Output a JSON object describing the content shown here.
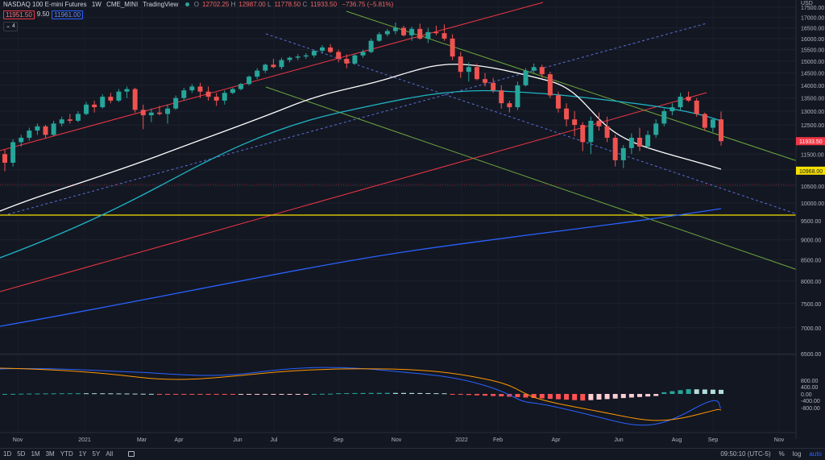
{
  "header": {
    "title": "NASDAQ 100 E-mini Futures",
    "interval": "1W",
    "symbol": "CME_MINI",
    "source": "TradingView",
    "ohlc": [
      {
        "label": "O",
        "value": "12702.25"
      },
      {
        "label": "H",
        "value": "12987.00"
      },
      {
        "label": "L",
        "value": "11778.50"
      },
      {
        "label": "C",
        "value": "11933.50"
      }
    ],
    "change": "−736.75 (−5.81%)",
    "bid": "11951.50",
    "spread": "9.50",
    "ask": "11961.00",
    "indicator_count": "4"
  },
  "price_axis": {
    "ticks": [
      "17500.00",
      "17000.00",
      "16500.00",
      "16000.00",
      "15500.00",
      "15000.00",
      "14500.00",
      "14000.00",
      "13500.00",
      "13000.00",
      "12500.00",
      "12000.00",
      "11500.00",
      "11000.00",
      "10500.00",
      "10000.00",
      "9500.00",
      "9000.00",
      "8500.00",
      "8000.00",
      "7500.00",
      "7000.00",
      "6500.00"
    ],
    "top_label": "USD",
    "last_price_label": "11933.50",
    "level_label": "10968.00",
    "colors": {
      "last": "#f23645",
      "level": "#f5e000"
    }
  },
  "macd_axis": {
    "ticks": [
      "800.00",
      "400.00",
      "0.00",
      "-400.00",
      "-800.00"
    ]
  },
  "time_axis": {
    "labels": [
      "Nov",
      "2021",
      "Mar",
      "Apr",
      "Jun",
      "Jul",
      "Sep",
      "Nov",
      "2022",
      "Feb",
      "Apr",
      "Jun",
      "Aug",
      "Sep",
      "Nov"
    ]
  },
  "bottom_bar": {
    "timeframes": [
      "1D",
      "5D",
      "1M",
      "3M",
      "YTD",
      "1Y",
      "5Y",
      "All"
    ],
    "clock": "09:50:10 (UTC-5)",
    "percent": "%",
    "log": "log",
    "auto": "auto"
  },
  "chart_data": {
    "type": "candlestick",
    "interval": "1W",
    "ohlc_weekly": [
      [
        11500,
        11650,
        10950,
        11220
      ],
      [
        11220,
        12000,
        11100,
        11900
      ],
      [
        11900,
        12150,
        11750,
        12050
      ],
      [
        12050,
        12400,
        11950,
        12300
      ],
      [
        12300,
        12550,
        12150,
        12450
      ],
      [
        12450,
        12500,
        12050,
        12150
      ],
      [
        12150,
        12650,
        12100,
        12550
      ],
      [
        12550,
        12800,
        12450,
        12700
      ],
      [
        12700,
        12900,
        12550,
        12650
      ],
      [
        12650,
        13000,
        12600,
        12900
      ],
      [
        12900,
        13350,
        12850,
        13250
      ],
      [
        13250,
        13400,
        12950,
        13150
      ],
      [
        13150,
        13650,
        13100,
        13550
      ],
      [
        13550,
        13700,
        13300,
        13400
      ],
      [
        13400,
        13850,
        13350,
        13750
      ],
      [
        13750,
        13950,
        13500,
        13850
      ],
      [
        13850,
        13900,
        12950,
        13050
      ],
      [
        13050,
        13250,
        12350,
        12850
      ],
      [
        12850,
        13100,
        12600,
        12950
      ],
      [
        12950,
        13200,
        12850,
        12900
      ],
      [
        12900,
        13250,
        12550,
        13100
      ],
      [
        13100,
        13600,
        13050,
        13500
      ],
      [
        13500,
        13900,
        13400,
        13800
      ],
      [
        13800,
        14050,
        13700,
        13950
      ],
      [
        13950,
        14100,
        13500,
        13750
      ],
      [
        13750,
        13950,
        13400,
        13550
      ],
      [
        13550,
        13700,
        13200,
        13400
      ],
      [
        13400,
        13800,
        13250,
        13700
      ],
      [
        13700,
        13900,
        13650,
        13850
      ],
      [
        13850,
        14100,
        13800,
        14050
      ],
      [
        14050,
        14400,
        14000,
        14350
      ],
      [
        14350,
        14700,
        14250,
        14600
      ],
      [
        14600,
        14900,
        14500,
        14850
      ],
      [
        14850,
        15100,
        14700,
        14750
      ],
      [
        14750,
        15150,
        14650,
        15050
      ],
      [
        15050,
        15200,
        14950,
        15150
      ],
      [
        15150,
        15300,
        15050,
        15200
      ],
      [
        15200,
        15350,
        15100,
        15250
      ],
      [
        15250,
        15500,
        15150,
        15450
      ],
      [
        15450,
        15700,
        15350,
        15600
      ],
      [
        15600,
        15750,
        15350,
        15400
      ],
      [
        15400,
        15500,
        14950,
        15100
      ],
      [
        15100,
        15300,
        14700,
        14900
      ],
      [
        14900,
        15300,
        14850,
        15250
      ],
      [
        15250,
        15500,
        15150,
        15400
      ],
      [
        15400,
        16000,
        15350,
        15900
      ],
      [
        15900,
        16300,
        15850,
        16200
      ],
      [
        16200,
        16450,
        16100,
        16350
      ],
      [
        16350,
        16750,
        16200,
        16500
      ],
      [
        16500,
        16600,
        16100,
        16150
      ],
      [
        16150,
        16550,
        15900,
        16450
      ],
      [
        16450,
        16700,
        15950,
        16000
      ],
      [
        16000,
        16500,
        15800,
        16300
      ],
      [
        16300,
        16600,
        16150,
        16250
      ],
      [
        16250,
        16660,
        15900,
        16000
      ],
      [
        16000,
        16200,
        15050,
        15200
      ],
      [
        15200,
        15400,
        14300,
        14550
      ],
      [
        14550,
        14950,
        14150,
        14750
      ],
      [
        14750,
        14900,
        14200,
        14250
      ],
      [
        14250,
        14500,
        13950,
        14100
      ],
      [
        14100,
        14300,
        13700,
        13800
      ],
      [
        13800,
        14000,
        13100,
        13300
      ],
      [
        13300,
        13400,
        12950,
        13150
      ],
      [
        13150,
        14150,
        13050,
        14000
      ],
      [
        14000,
        14700,
        13950,
        14600
      ],
      [
        14600,
        14900,
        14500,
        14750
      ],
      [
        14750,
        14850,
        14300,
        14450
      ],
      [
        14450,
        14550,
        13500,
        13600
      ],
      [
        13600,
        13750,
        12950,
        13100
      ],
      [
        13100,
        13300,
        12450,
        12700
      ],
      [
        12700,
        13000,
        12100,
        12500
      ],
      [
        12500,
        12600,
        11600,
        11900
      ],
      [
        11900,
        12800,
        11500,
        12650
      ],
      [
        12650,
        12950,
        12300,
        12450
      ],
      [
        12450,
        12800,
        11900,
        12050
      ],
      [
        12050,
        12150,
        11100,
        11300
      ],
      [
        11300,
        11800,
        11050,
        11700
      ],
      [
        11700,
        12200,
        11500,
        12050
      ],
      [
        12050,
        12400,
        11600,
        11750
      ],
      [
        11750,
        12300,
        11700,
        12150
      ],
      [
        12150,
        12700,
        12050,
        12550
      ],
      [
        12550,
        13100,
        12450,
        13000
      ],
      [
        13000,
        13300,
        12850,
        13150
      ],
      [
        13150,
        13700,
        13050,
        13550
      ],
      [
        13550,
        13750,
        13350,
        13400
      ],
      [
        13400,
        13500,
        12800,
        12900
      ],
      [
        12900,
        12950,
        12300,
        12400
      ],
      [
        12400,
        12750,
        12250,
        12700
      ],
      [
        12702.25,
        12987,
        11778.5,
        11933.5
      ]
    ],
    "horizontal_level": 10968.0,
    "last_price": 11933.5,
    "price_range": [
      6500,
      17600
    ],
    "macd_range": [
      -800,
      800
    ],
    "legend": "none",
    "grid": true
  }
}
